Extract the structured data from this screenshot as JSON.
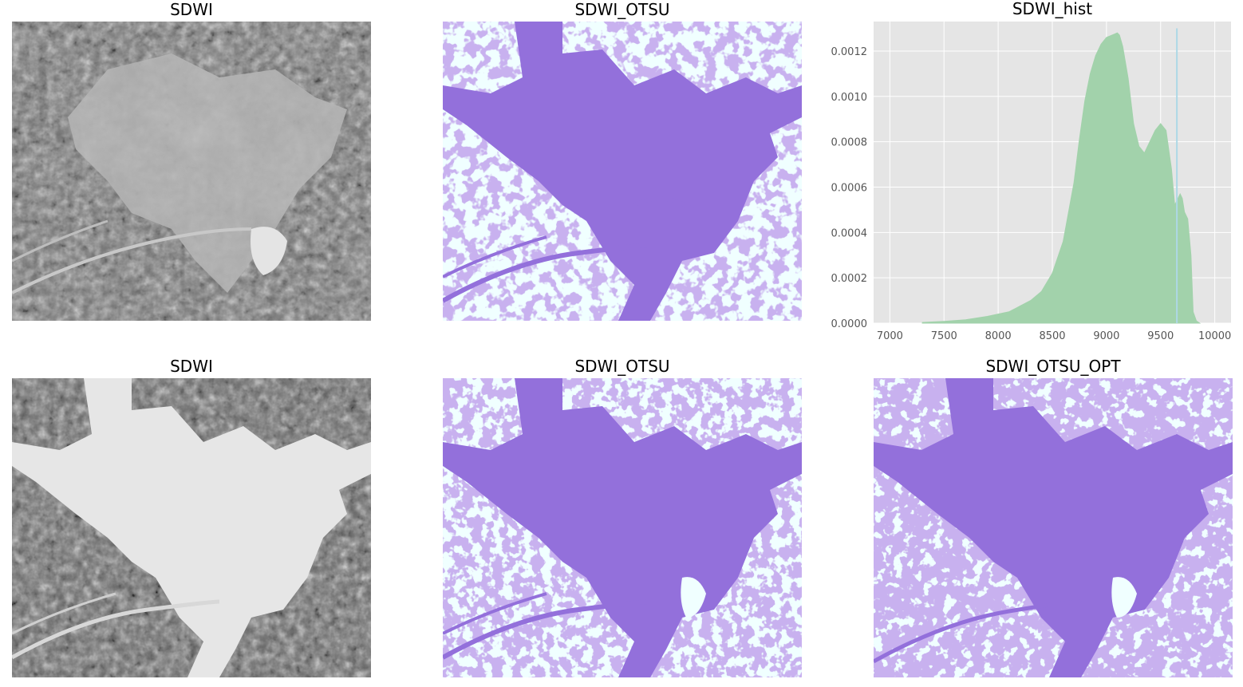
{
  "panels": {
    "p1": {
      "title": "SDWI"
    },
    "p2": {
      "title": "SDWI_OTSU"
    },
    "p3": {
      "title": "SDWI_hist"
    },
    "p4": {
      "title": "SDWI"
    },
    "p5": {
      "title": "SDWI_OTSU"
    },
    "p6": {
      "title": "SDWI_OTSU_OPT"
    }
  },
  "colors": {
    "water": "#9370db",
    "land": "#f0ffff",
    "hist_fill": "#a2d2ab",
    "threshold_line": "#add8e6",
    "plot_bg": "#e5e5e5",
    "grid": "#ffffff"
  },
  "chart_data": {
    "type": "area",
    "title": "SDWI_hist",
    "xlabel": "",
    "ylabel": "",
    "xlim": [
      6850,
      10150
    ],
    "ylim": [
      0,
      0.00133
    ],
    "grid": true,
    "xticks": [
      7000,
      7500,
      8000,
      8500,
      9000,
      9500,
      10000
    ],
    "xtick_labels": [
      "7000",
      "7500",
      "8000",
      "8500",
      "9000",
      "9500",
      "10000"
    ],
    "yticks": [
      0,
      0.0002,
      0.0004,
      0.0006,
      0.0008,
      0.001,
      0.0012
    ],
    "ytick_labels": [
      "0.0000",
      "0.0002",
      "0.0004",
      "0.0006",
      "0.0008",
      "0.0010",
      "0.0012"
    ],
    "x": [
      7300,
      7500,
      7700,
      7900,
      8100,
      8300,
      8400,
      8500,
      8600,
      8700,
      8750,
      8800,
      8850,
      8900,
      8950,
      9000,
      9050,
      9100,
      9120,
      9150,
      9200,
      9250,
      9300,
      9350,
      9400,
      9450,
      9500,
      9550,
      9600,
      9630,
      9660,
      9680,
      9700,
      9720,
      9750,
      9780,
      9800,
      9830,
      9860
    ],
    "values": [
      3e-06,
      8e-06,
      1.5e-05,
      3e-05,
      5e-05,
      0.0001,
      0.00014,
      0.00022,
      0.00036,
      0.00062,
      0.00081,
      0.00098,
      0.0011,
      0.00118,
      0.00123,
      0.00126,
      0.00127,
      0.00128,
      0.00127,
      0.00122,
      0.00108,
      0.00088,
      0.00078,
      0.00075,
      0.0008,
      0.00085,
      0.00088,
      0.00085,
      0.00068,
      0.00052,
      0.00055,
      0.00057,
      0.00055,
      0.00049,
      0.00046,
      0.0003,
      5e-05,
      1e-05,
      0.0
    ],
    "threshold": {
      "x": 9650,
      "y": 0.0013
    }
  }
}
